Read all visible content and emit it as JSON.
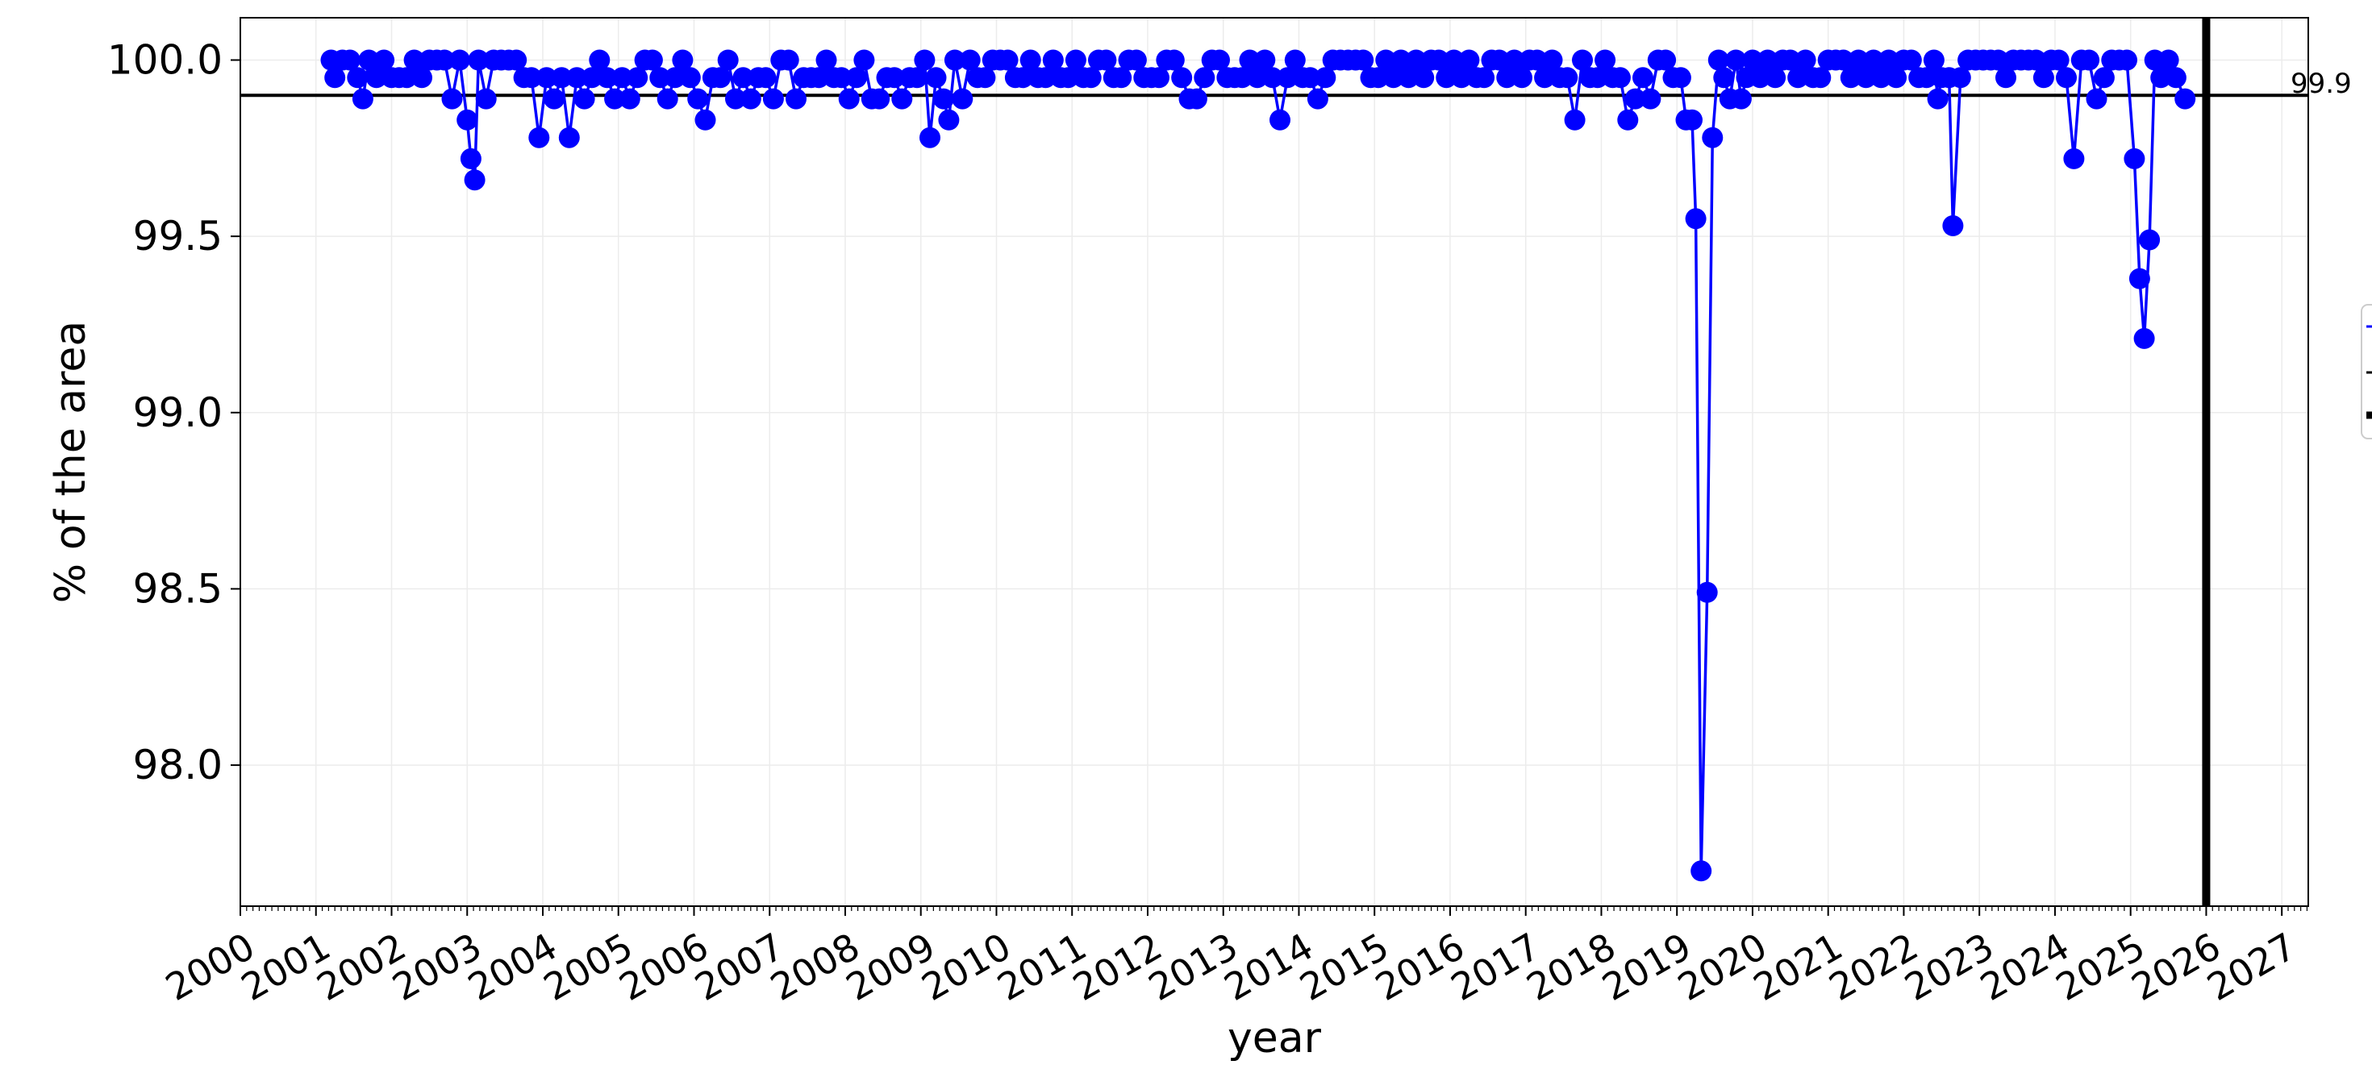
{
  "chart_data": {
    "type": "line",
    "title": "",
    "xlabel": "year",
    "ylabel": "% of the area",
    "xlim": [
      2000.0,
      2027.35
    ],
    "ylim": [
      97.6,
      100.12
    ],
    "grid": true,
    "x_ticks": [
      "2000",
      "2001",
      "2002",
      "2003",
      "2004",
      "2005",
      "2006",
      "2007",
      "2008",
      "2009",
      "2010",
      "2011",
      "2012",
      "2013",
      "2014",
      "2015",
      "2016",
      "2017",
      "2018",
      "2019",
      "2020",
      "2021",
      "2022",
      "2023",
      "2024",
      "2025",
      "2026",
      "2027"
    ],
    "y_ticks": [
      "98.0",
      "98.5",
      "99.0",
      "99.5",
      "100.0"
    ],
    "reference_line": {
      "y": 99.9,
      "label": "99.9",
      "color": "#000000"
    },
    "current_marker": {
      "x": 2026.0,
      "color": "#000000"
    },
    "series": [
      {
        "color": "#0000ff",
        "points": [
          [
            2001.2,
            100.0
          ],
          [
            2001.25,
            99.95
          ],
          [
            2001.35,
            100.0
          ],
          [
            2001.45,
            100.0
          ],
          [
            2001.55,
            99.95
          ],
          [
            2001.62,
            99.89
          ],
          [
            2001.7,
            100.0
          ],
          [
            2001.8,
            99.95
          ],
          [
            2001.9,
            100.0
          ],
          [
            2002.0,
            99.95
          ],
          [
            2002.1,
            99.95
          ],
          [
            2002.2,
            99.95
          ],
          [
            2002.3,
            100.0
          ],
          [
            2002.4,
            99.95
          ],
          [
            2002.5,
            100.0
          ],
          [
            2002.6,
            100.0
          ],
          [
            2002.7,
            100.0
          ],
          [
            2002.8,
            99.89
          ],
          [
            2002.9,
            100.0
          ],
          [
            2003.0,
            99.83
          ],
          [
            2003.05,
            99.72
          ],
          [
            2003.1,
            99.66
          ],
          [
            2003.15,
            100.0
          ],
          [
            2003.25,
            99.89
          ],
          [
            2003.35,
            100.0
          ],
          [
            2003.45,
            100.0
          ],
          [
            2003.55,
            100.0
          ],
          [
            2003.65,
            100.0
          ],
          [
            2003.75,
            99.95
          ],
          [
            2003.85,
            99.95
          ],
          [
            2003.95,
            99.78
          ],
          [
            2004.05,
            99.95
          ],
          [
            2004.15,
            99.89
          ],
          [
            2004.25,
            99.95
          ],
          [
            2004.35,
            99.78
          ],
          [
            2004.45,
            99.95
          ],
          [
            2004.55,
            99.89
          ],
          [
            2004.65,
            99.95
          ],
          [
            2004.75,
            100.0
          ],
          [
            2004.85,
            99.95
          ],
          [
            2004.95,
            99.89
          ],
          [
            2005.05,
            99.95
          ],
          [
            2005.15,
            99.89
          ],
          [
            2005.25,
            99.95
          ],
          [
            2005.35,
            100.0
          ],
          [
            2005.45,
            100.0
          ],
          [
            2005.55,
            99.95
          ],
          [
            2005.65,
            99.89
          ],
          [
            2005.75,
            99.95
          ],
          [
            2005.85,
            100.0
          ],
          [
            2005.95,
            99.95
          ],
          [
            2006.05,
            99.89
          ],
          [
            2006.15,
            99.83
          ],
          [
            2006.25,
            99.95
          ],
          [
            2006.35,
            99.95
          ],
          [
            2006.45,
            100.0
          ],
          [
            2006.55,
            99.89
          ],
          [
            2006.65,
            99.95
          ],
          [
            2006.75,
            99.89
          ],
          [
            2006.85,
            99.95
          ],
          [
            2006.95,
            99.95
          ],
          [
            2007.05,
            99.89
          ],
          [
            2007.15,
            100.0
          ],
          [
            2007.25,
            100.0
          ],
          [
            2007.35,
            99.89
          ],
          [
            2007.45,
            99.95
          ],
          [
            2007.55,
            99.95
          ],
          [
            2007.65,
            99.95
          ],
          [
            2007.75,
            100.0
          ],
          [
            2007.85,
            99.95
          ],
          [
            2007.95,
            99.95
          ],
          [
            2008.05,
            99.89
          ],
          [
            2008.15,
            99.95
          ],
          [
            2008.25,
            100.0
          ],
          [
            2008.35,
            99.89
          ],
          [
            2008.45,
            99.89
          ],
          [
            2008.55,
            99.95
          ],
          [
            2008.65,
            99.95
          ],
          [
            2008.75,
            99.89
          ],
          [
            2008.85,
            99.95
          ],
          [
            2008.95,
            99.95
          ],
          [
            2009.05,
            100.0
          ],
          [
            2009.12,
            99.78
          ],
          [
            2009.2,
            99.95
          ],
          [
            2009.3,
            99.89
          ],
          [
            2009.37,
            99.83
          ],
          [
            2009.45,
            100.0
          ],
          [
            2009.55,
            99.89
          ],
          [
            2009.65,
            100.0
          ],
          [
            2009.75,
            99.95
          ],
          [
            2009.85,
            99.95
          ],
          [
            2009.95,
            100.0
          ],
          [
            2010.05,
            100.0
          ],
          [
            2010.15,
            100.0
          ],
          [
            2010.25,
            99.95
          ],
          [
            2010.35,
            99.95
          ],
          [
            2010.45,
            100.0
          ],
          [
            2010.55,
            99.95
          ],
          [
            2010.65,
            99.95
          ],
          [
            2010.75,
            100.0
          ],
          [
            2010.85,
            99.95
          ],
          [
            2010.95,
            99.95
          ],
          [
            2011.05,
            100.0
          ],
          [
            2011.15,
            99.95
          ],
          [
            2011.25,
            99.95
          ],
          [
            2011.35,
            100.0
          ],
          [
            2011.45,
            100.0
          ],
          [
            2011.55,
            99.95
          ],
          [
            2011.65,
            99.95
          ],
          [
            2011.75,
            100.0
          ],
          [
            2011.85,
            100.0
          ],
          [
            2011.95,
            99.95
          ],
          [
            2012.05,
            99.95
          ],
          [
            2012.15,
            99.95
          ],
          [
            2012.25,
            100.0
          ],
          [
            2012.35,
            100.0
          ],
          [
            2012.45,
            99.95
          ],
          [
            2012.55,
            99.89
          ],
          [
            2012.65,
            99.89
          ],
          [
            2012.75,
            99.95
          ],
          [
            2012.85,
            100.0
          ],
          [
            2012.95,
            100.0
          ],
          [
            2013.05,
            99.95
          ],
          [
            2013.15,
            99.95
          ],
          [
            2013.25,
            99.95
          ],
          [
            2013.35,
            100.0
          ],
          [
            2013.45,
            99.95
          ],
          [
            2013.55,
            100.0
          ],
          [
            2013.65,
            99.95
          ],
          [
            2013.75,
            99.83
          ],
          [
            2013.85,
            99.95
          ],
          [
            2013.95,
            100.0
          ],
          [
            2014.05,
            99.95
          ],
          [
            2014.15,
            99.95
          ],
          [
            2014.25,
            99.89
          ],
          [
            2014.35,
            99.95
          ],
          [
            2014.45,
            100.0
          ],
          [
            2014.55,
            100.0
          ],
          [
            2014.65,
            100.0
          ],
          [
            2014.75,
            100.0
          ],
          [
            2014.85,
            100.0
          ],
          [
            2014.95,
            99.95
          ],
          [
            2015.05,
            99.95
          ],
          [
            2015.15,
            100.0
          ],
          [
            2015.25,
            99.95
          ],
          [
            2015.35,
            100.0
          ],
          [
            2015.45,
            99.95
          ],
          [
            2015.55,
            100.0
          ],
          [
            2015.65,
            99.95
          ],
          [
            2015.75,
            100.0
          ],
          [
            2015.85,
            100.0
          ],
          [
            2015.95,
            99.95
          ],
          [
            2016.05,
            100.0
          ],
          [
            2016.15,
            99.95
          ],
          [
            2016.25,
            100.0
          ],
          [
            2016.35,
            99.95
          ],
          [
            2016.45,
            99.95
          ],
          [
            2016.55,
            100.0
          ],
          [
            2016.65,
            100.0
          ],
          [
            2016.75,
            99.95
          ],
          [
            2016.85,
            100.0
          ],
          [
            2016.95,
            99.95
          ],
          [
            2017.05,
            100.0
          ],
          [
            2017.15,
            100.0
          ],
          [
            2017.25,
            99.95
          ],
          [
            2017.35,
            100.0
          ],
          [
            2017.45,
            99.95
          ],
          [
            2017.55,
            99.95
          ],
          [
            2017.65,
            99.83
          ],
          [
            2017.75,
            100.0
          ],
          [
            2017.85,
            99.95
          ],
          [
            2017.95,
            99.95
          ],
          [
            2018.05,
            100.0
          ],
          [
            2018.15,
            99.95
          ],
          [
            2018.25,
            99.95
          ],
          [
            2018.35,
            99.83
          ],
          [
            2018.45,
            99.89
          ],
          [
            2018.55,
            99.95
          ],
          [
            2018.65,
            99.89
          ],
          [
            2018.75,
            100.0
          ],
          [
            2018.85,
            100.0
          ],
          [
            2018.95,
            99.95
          ],
          [
            2019.05,
            99.95
          ],
          [
            2019.12,
            99.83
          ],
          [
            2019.2,
            99.83
          ],
          [
            2019.25,
            99.55
          ],
          [
            2019.32,
            97.7
          ],
          [
            2019.4,
            98.49
          ],
          [
            2019.47,
            99.78
          ],
          [
            2019.55,
            100.0
          ],
          [
            2019.62,
            99.95
          ],
          [
            2019.7,
            99.89
          ],
          [
            2019.78,
            100.0
          ],
          [
            2019.85,
            99.89
          ],
          [
            2019.92,
            99.95
          ],
          [
            2020.0,
            100.0
          ],
          [
            2020.1,
            99.95
          ],
          [
            2020.2,
            100.0
          ],
          [
            2020.3,
            99.95
          ],
          [
            2020.4,
            100.0
          ],
          [
            2020.5,
            100.0
          ],
          [
            2020.6,
            99.95
          ],
          [
            2020.7,
            100.0
          ],
          [
            2020.8,
            99.95
          ],
          [
            2020.9,
            99.95
          ],
          [
            2021.0,
            100.0
          ],
          [
            2021.1,
            100.0
          ],
          [
            2021.2,
            100.0
          ],
          [
            2021.3,
            99.95
          ],
          [
            2021.4,
            100.0
          ],
          [
            2021.5,
            99.95
          ],
          [
            2021.6,
            100.0
          ],
          [
            2021.7,
            99.95
          ],
          [
            2021.8,
            100.0
          ],
          [
            2021.9,
            99.95
          ],
          [
            2022.0,
            100.0
          ],
          [
            2022.1,
            100.0
          ],
          [
            2022.2,
            99.95
          ],
          [
            2022.3,
            99.95
          ],
          [
            2022.4,
            100.0
          ],
          [
            2022.45,
            99.89
          ],
          [
            2022.5,
            99.95
          ],
          [
            2022.6,
            99.95
          ],
          [
            2022.65,
            99.53
          ],
          [
            2022.75,
            99.95
          ],
          [
            2022.85,
            100.0
          ],
          [
            2022.95,
            100.0
          ],
          [
            2023.05,
            100.0
          ],
          [
            2023.15,
            100.0
          ],
          [
            2023.25,
            100.0
          ],
          [
            2023.35,
            99.95
          ],
          [
            2023.45,
            100.0
          ],
          [
            2023.55,
            100.0
          ],
          [
            2023.65,
            100.0
          ],
          [
            2023.75,
            100.0
          ],
          [
            2023.85,
            99.95
          ],
          [
            2023.95,
            100.0
          ],
          [
            2024.05,
            100.0
          ],
          [
            2024.15,
            99.95
          ],
          [
            2024.25,
            99.72
          ],
          [
            2024.35,
            100.0
          ],
          [
            2024.45,
            100.0
          ],
          [
            2024.55,
            99.89
          ],
          [
            2024.65,
            99.95
          ],
          [
            2024.75,
            100.0
          ],
          [
            2024.85,
            100.0
          ],
          [
            2024.95,
            100.0
          ],
          [
            2025.05,
            99.72
          ],
          [
            2025.12,
            99.38
          ],
          [
            2025.18,
            99.21
          ],
          [
            2025.25,
            99.49
          ],
          [
            2025.32,
            100.0
          ],
          [
            2025.4,
            99.95
          ],
          [
            2025.5,
            100.0
          ],
          [
            2025.6,
            99.95
          ],
          [
            2025.72,
            99.89
          ]
        ]
      }
    ]
  }
}
